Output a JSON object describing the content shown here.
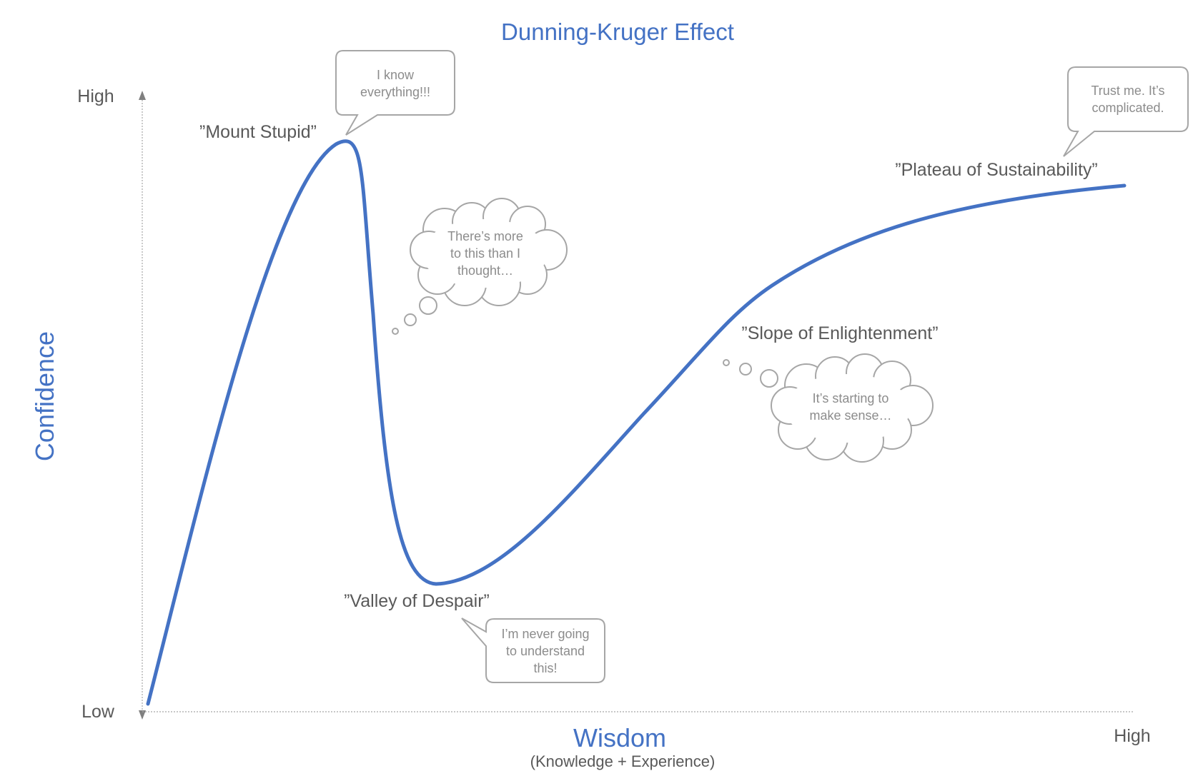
{
  "title": "Dunning-Kruger Effect",
  "y_axis": {
    "label": "Confidence",
    "high": "High",
    "low": "Low"
  },
  "x_axis": {
    "label": "Wisdom",
    "sublabel": "(Knowledge + Experience)",
    "high": "High"
  },
  "colors": {
    "accent": "#4472c4",
    "curve": "#4472c4",
    "text": "#595959",
    "bubble_text": "#8c8c8c",
    "bubble_border": "#a6a6a6"
  },
  "stages": {
    "mount_stupid": "”Mount Stupid”",
    "valley_of_despair": "”Valley of Despair”",
    "slope_of_enlightenment": "”Slope of Enlightenment”",
    "plateau_of_sustainability": "”Plateau of Sustainability”"
  },
  "bubbles": {
    "know_everything": [
      "I know",
      "everything!!!"
    ],
    "more_to_this": [
      "There’s more",
      "to this than I",
      "thought…"
    ],
    "never_understand": [
      "I’m never going",
      "to understand",
      "this!"
    ],
    "starting_sense": [
      "It’s starting to",
      "make sense…"
    ],
    "trust_me": [
      "Trust me. It’s",
      "complicated."
    ]
  }
}
